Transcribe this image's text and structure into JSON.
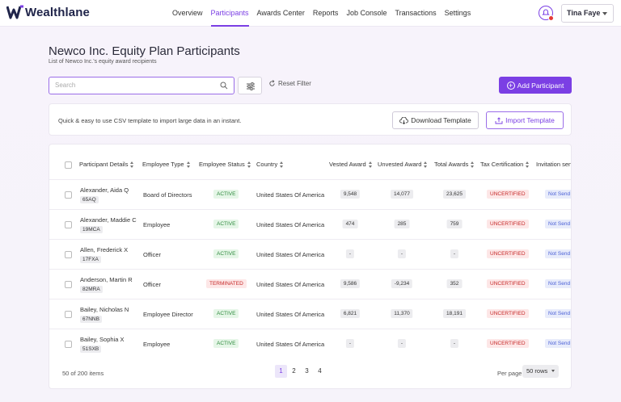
{
  "app": {
    "brand": "Wealthlane"
  },
  "nav": {
    "items": [
      {
        "label": "Overview",
        "active": false
      },
      {
        "label": "Participants",
        "active": true
      },
      {
        "label": "Awards Center",
        "active": false
      },
      {
        "label": "Reports",
        "active": false
      },
      {
        "label": "Job Console",
        "active": false
      },
      {
        "label": "Transactions",
        "active": false
      },
      {
        "label": "Settings",
        "active": false
      }
    ]
  },
  "user": {
    "name": "Tina Faye"
  },
  "page": {
    "title": "Newco Inc. Equity Plan Participants",
    "subtitle": "List of Newco Inc.'s equity award recipients"
  },
  "toolbar": {
    "search_placeholder": "Search",
    "reset_label": "Reset Filter",
    "add_label": "Add Participant"
  },
  "csv": {
    "text": "Quick & easy to use CSV template to import large data in an instant.",
    "download_label": "Download Template",
    "import_label": "Import Template"
  },
  "table": {
    "columns": [
      "Participant Details",
      "Employee Type",
      "Employee Status",
      "Country",
      "Vested Award",
      "Unvested Award",
      "Total Awards",
      "Tax Certification",
      "Invitation sen"
    ],
    "rows": [
      {
        "name": "Alexander, Aida Q",
        "code": "65AQ",
        "type": "Board of Directors",
        "status": "ACTIVE",
        "country": "United States Of America",
        "vested": "9,548",
        "unvested": "14,077",
        "total": "23,625",
        "tax": "UNCERTIFIED",
        "invite": "Not Send"
      },
      {
        "name": "Alexander, Maddie C",
        "code": "19MCA",
        "type": "Employee",
        "status": "ACTIVE",
        "country": "United States Of America",
        "vested": "474",
        "unvested": "285",
        "total": "759",
        "tax": "UNCERTIFIED",
        "invite": "Not Send"
      },
      {
        "name": "Allen, Frederick X",
        "code": "17FXA",
        "type": "Officer",
        "status": "ACTIVE",
        "country": "United States Of America",
        "vested": "-",
        "unvested": "-",
        "total": "-",
        "tax": "UNCERTIFIED",
        "invite": "Not Send"
      },
      {
        "name": "Anderson, Martin R",
        "code": "82MRA",
        "type": "Officer",
        "status": "TERMINATED",
        "country": "United States Of America",
        "vested": "9,586",
        "unvested": "-9,234",
        "total": "352",
        "tax": "UNCERTIFIED",
        "invite": "Not Send"
      },
      {
        "name": "Bailey, Nicholas N",
        "code": "67NNB",
        "type": "Employee Director",
        "status": "ACTIVE",
        "country": "United States Of America",
        "vested": "6,821",
        "unvested": "11,370",
        "total": "18,191",
        "tax": "UNCERTIFIED",
        "invite": "Not Send"
      },
      {
        "name": "Bailey, Sophia X",
        "code": "51SXB",
        "type": "Employee",
        "status": "ACTIVE",
        "country": "United States Of America",
        "vested": "-",
        "unvested": "-",
        "total": "-",
        "tax": "UNCERTIFIED",
        "invite": "Not Send"
      }
    ]
  },
  "footer": {
    "count_text": "50 of 200 items",
    "pages": [
      "1",
      "2",
      "3",
      "4"
    ],
    "current_page": "1",
    "per_page_label": "Per page",
    "rows_value": "50 rows"
  },
  "colors": {
    "accent": "#7b3fe4",
    "active": "#2e8b3e",
    "danger": "#c62828",
    "info": "#4a5fd6"
  }
}
